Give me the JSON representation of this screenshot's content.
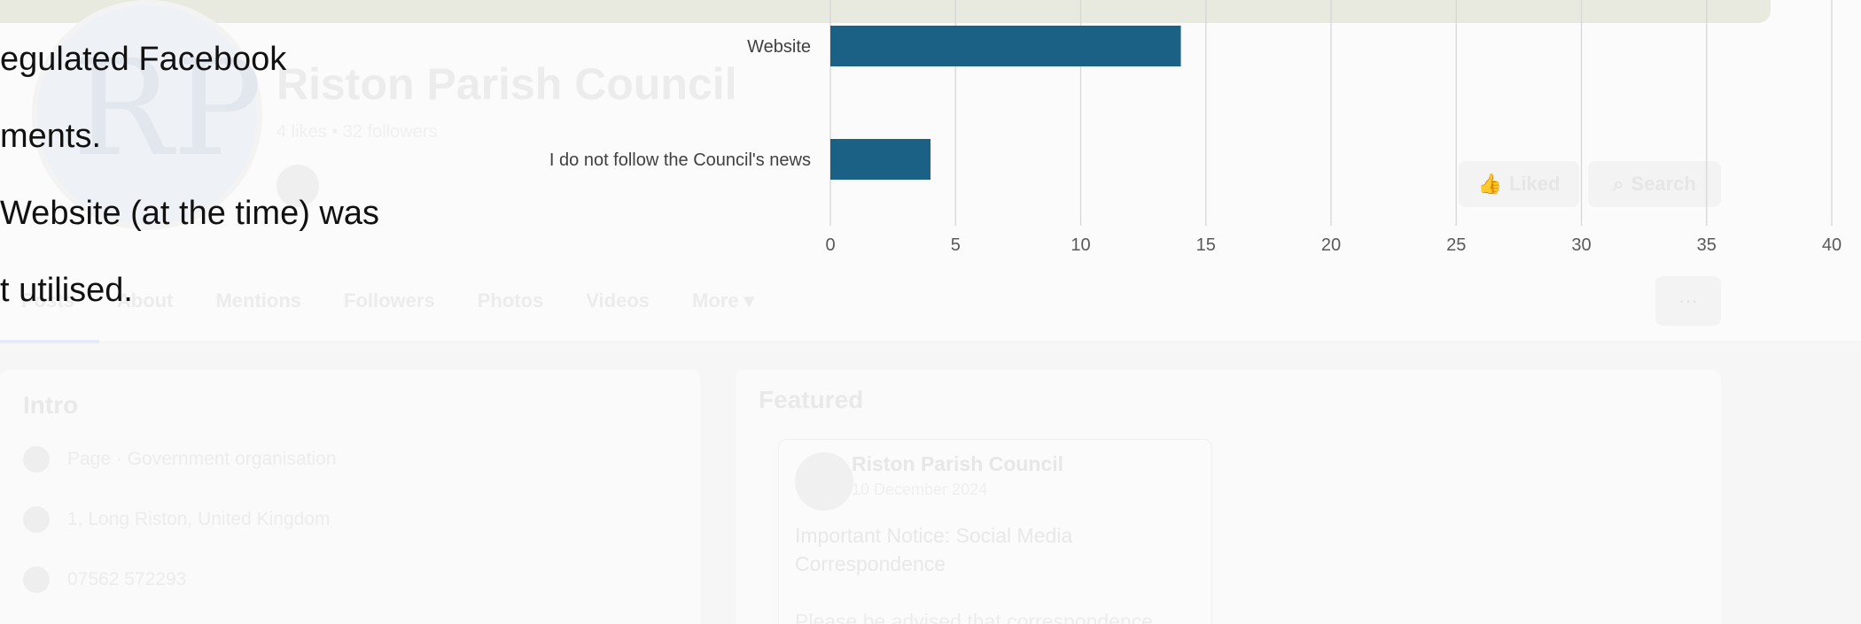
{
  "background_page": {
    "page_name": "Riston Parish Council",
    "page_meta": "4 likes • 32 followers",
    "profile_monogram": "RP",
    "buttons": {
      "liked": "Liked",
      "search": "Search",
      "more": "···"
    },
    "tabs": [
      "Posts",
      "About",
      "Mentions",
      "Followers",
      "Photos",
      "Videos",
      "More ▾"
    ],
    "intro": {
      "title": "Intro",
      "rows": [
        "Page · Government organisation",
        "1, Long Riston, United Kingdom",
        "07562 572293"
      ]
    },
    "featured": {
      "title": "Featured",
      "post_author": "Riston Parish Council",
      "post_date": "10 December 2024",
      "post_text": "Important Notice: Social Media Correspondence",
      "post_text_2": "Please be advised that correspondence"
    }
  },
  "slide_text": {
    "lines": [
      "egulated Facebook",
      "ments.",
      "Website (at the time) was",
      "t utilised."
    ]
  },
  "chart_data": {
    "type": "bar",
    "orientation": "horizontal",
    "categories": [
      "Website",
      "I do not follow the Council's news"
    ],
    "values": [
      14,
      4
    ],
    "xlim": [
      0,
      40
    ],
    "xticks": [
      0,
      5,
      10,
      15,
      20,
      25,
      30,
      35,
      40
    ],
    "grid": true,
    "bar_color": "#1b6186"
  }
}
